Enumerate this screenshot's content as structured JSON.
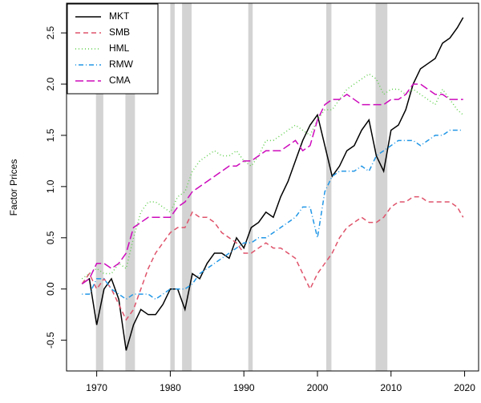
{
  "chart_data": {
    "type": "line",
    "ylabel": "Factor Prices",
    "x": [
      1968,
      1969,
      1970,
      1971,
      1972,
      1973,
      1974,
      1975,
      1976,
      1977,
      1978,
      1979,
      1980,
      1981,
      1982,
      1983,
      1984,
      1985,
      1986,
      1987,
      1988,
      1989,
      1990,
      1991,
      1992,
      1993,
      1994,
      1995,
      1996,
      1997,
      1998,
      1999,
      2000,
      2001,
      2002,
      2003,
      2004,
      2005,
      2006,
      2007,
      2008,
      2009,
      2010,
      2011,
      2012,
      2013,
      2014,
      2015,
      2016,
      2017,
      2018,
      2019,
      2019.8
    ],
    "series": [
      {
        "name": "MKT",
        "color": "#000000",
        "dash": "solid",
        "values": [
          0.05,
          0.1,
          -0.35,
          0.0,
          0.1,
          -0.1,
          -0.6,
          -0.35,
          -0.2,
          -0.25,
          -0.25,
          -0.15,
          0.0,
          0.0,
          -0.2,
          0.15,
          0.1,
          0.25,
          0.35,
          0.35,
          0.3,
          0.5,
          0.4,
          0.6,
          0.65,
          0.75,
          0.7,
          0.9,
          1.05,
          1.25,
          1.45,
          1.6,
          1.7,
          1.4,
          1.1,
          1.2,
          1.35,
          1.4,
          1.55,
          1.65,
          1.3,
          1.15,
          1.55,
          1.6,
          1.75,
          2.0,
          2.15,
          2.2,
          2.25,
          2.4,
          2.45,
          2.55,
          2.65
        ]
      },
      {
        "name": "SMB",
        "color": "#DF536B",
        "dash": "dashed",
        "values": [
          0.05,
          0.15,
          0.0,
          0.1,
          0.0,
          -0.15,
          -0.3,
          -0.2,
          0.0,
          0.2,
          0.35,
          0.45,
          0.55,
          0.6,
          0.6,
          0.75,
          0.7,
          0.7,
          0.65,
          0.55,
          0.5,
          0.45,
          0.35,
          0.35,
          0.4,
          0.45,
          0.4,
          0.4,
          0.35,
          0.3,
          0.15,
          0.0,
          0.15,
          0.25,
          0.35,
          0.5,
          0.6,
          0.65,
          0.7,
          0.65,
          0.65,
          0.7,
          0.8,
          0.85,
          0.85,
          0.9,
          0.9,
          0.85,
          0.85,
          0.85,
          0.85,
          0.8,
          0.7
        ]
      },
      {
        "name": "HML",
        "color": "#61D04F",
        "dash": "dotted",
        "values": [
          0.1,
          0.15,
          0.2,
          0.15,
          0.15,
          0.25,
          0.2,
          0.5,
          0.75,
          0.85,
          0.85,
          0.8,
          0.75,
          0.9,
          0.95,
          1.15,
          1.25,
          1.3,
          1.35,
          1.3,
          1.3,
          1.35,
          1.25,
          1.2,
          1.3,
          1.45,
          1.45,
          1.5,
          1.55,
          1.6,
          1.55,
          1.5,
          1.65,
          1.75,
          1.75,
          1.85,
          1.95,
          2.0,
          2.05,
          2.1,
          2.05,
          1.9,
          1.95,
          1.95,
          1.9,
          1.95,
          1.9,
          1.85,
          1.8,
          1.95,
          1.85,
          1.75,
          1.7
        ]
      },
      {
        "name": "RMW",
        "color": "#2297E6",
        "dash": "dotdash",
        "values": [
          -0.05,
          -0.05,
          0.1,
          0.1,
          0.0,
          -0.05,
          -0.1,
          -0.05,
          -0.05,
          -0.05,
          -0.1,
          -0.05,
          0.0,
          0.0,
          0.0,
          0.05,
          0.15,
          0.2,
          0.25,
          0.3,
          0.35,
          0.4,
          0.45,
          0.45,
          0.5,
          0.5,
          0.55,
          0.6,
          0.65,
          0.7,
          0.8,
          0.8,
          0.5,
          0.95,
          1.1,
          1.15,
          1.15,
          1.15,
          1.2,
          1.15,
          1.3,
          1.35,
          1.4,
          1.45,
          1.45,
          1.45,
          1.4,
          1.45,
          1.5,
          1.5,
          1.55,
          1.55,
          1.55
        ]
      },
      {
        "name": "CMA",
        "color": "#CD0BBC",
        "dash": "longdash",
        "values": [
          0.05,
          0.1,
          0.25,
          0.25,
          0.2,
          0.25,
          0.35,
          0.6,
          0.65,
          0.7,
          0.7,
          0.7,
          0.7,
          0.8,
          0.85,
          0.95,
          1.0,
          1.05,
          1.1,
          1.15,
          1.2,
          1.2,
          1.25,
          1.25,
          1.3,
          1.35,
          1.35,
          1.35,
          1.4,
          1.45,
          1.35,
          1.4,
          1.65,
          1.8,
          1.85,
          1.85,
          1.9,
          1.85,
          1.8,
          1.8,
          1.8,
          1.8,
          1.85,
          1.85,
          1.9,
          2.0,
          2.0,
          1.95,
          1.9,
          1.9,
          1.85,
          1.85,
          1.85
        ]
      }
    ],
    "shaded_periods": [
      [
        1969.9,
        1970.9
      ],
      [
        1973.9,
        1975.2
      ],
      [
        1980.0,
        1980.6
      ],
      [
        1981.6,
        1982.9
      ],
      [
        1990.6,
        1991.2
      ],
      [
        2001.2,
        2001.9
      ],
      [
        2007.9,
        2009.5
      ]
    ],
    "shade_color": "#d3d3d3",
    "xlim": [
      1965.9,
      2021.9
    ],
    "ylim": [
      -0.8,
      2.79
    ],
    "xticks": [
      1970,
      1980,
      1990,
      2000,
      2010,
      2020
    ],
    "yticks": [
      -0.5,
      {
        "value": 0,
        "label": "0.0"
      },
      0.5,
      {
        "value": 1,
        "label": "1.0"
      },
      1.5,
      {
        "value": 2,
        "label": "2.0"
      },
      2.5
    ],
    "legend": "top-left"
  }
}
